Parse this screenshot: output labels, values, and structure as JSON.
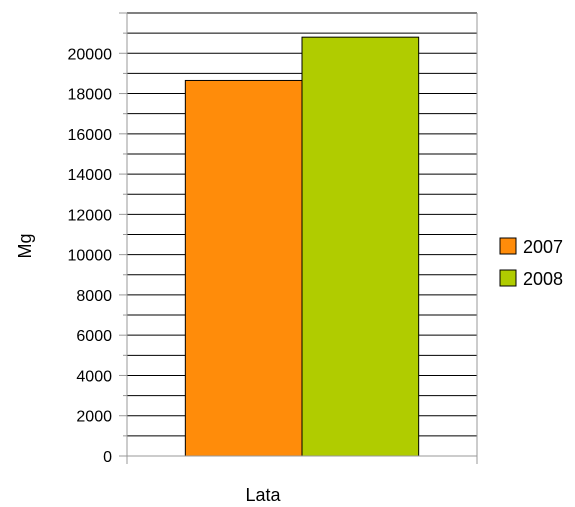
{
  "chart_data": {
    "type": "bar",
    "categories": [
      ""
    ],
    "series": [
      {
        "name": "2007",
        "values": [
          18650
        ],
        "color": "#ff8c0a"
      },
      {
        "name": "2008",
        "values": [
          20800
        ],
        "color": "#b0cc00"
      }
    ],
    "xlabel": "Lata",
    "ylabel": "Mg",
    "ylim": [
      0,
      22000
    ],
    "yticks": [
      0,
      2000,
      4000,
      6000,
      8000,
      10000,
      12000,
      14000,
      16000,
      18000,
      20000
    ],
    "grid": "major and minor horizontal",
    "legend": "right"
  }
}
